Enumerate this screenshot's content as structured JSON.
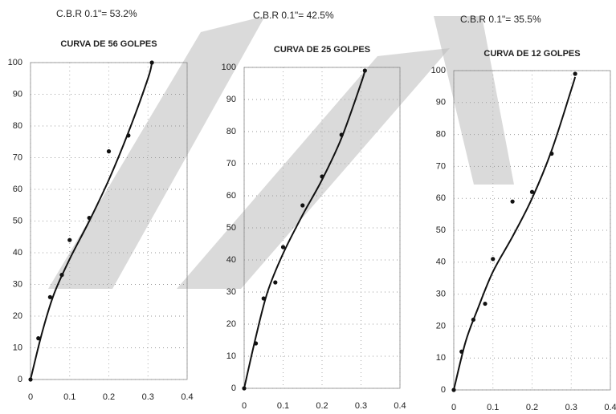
{
  "chart_data": [
    {
      "type": "scatter",
      "annotation": "C.B.R 0.1\"= 53.2%",
      "title": "CURVA DE 56 GOLPES",
      "xlim": [
        0,
        0.4
      ],
      "xticks": [
        0,
        0.1,
        0.2,
        0.3,
        0.4
      ],
      "ylim": [
        0,
        100
      ],
      "yticks": [
        0,
        10,
        20,
        30,
        40,
        50,
        60,
        70,
        80,
        90,
        100
      ],
      "grid": true,
      "series": [
        {
          "mode": "markers",
          "color": "#111111",
          "x": [
            0,
            0.02,
            0.05,
            0.08,
            0.1,
            0.15,
            0.2,
            0.25,
            0.31
          ],
          "values": [
            0,
            13,
            26,
            33,
            44,
            51,
            72,
            77,
            100
          ]
        },
        {
          "mode": "line",
          "color": "#111111",
          "x": [
            0,
            0.03,
            0.06,
            0.1,
            0.15,
            0.2,
            0.25,
            0.3,
            0.31
          ],
          "values": [
            0,
            15,
            27,
            38,
            50,
            63,
            78,
            95,
            100
          ]
        }
      ]
    },
    {
      "type": "scatter",
      "annotation": "C.B.R 0.1\"= 42.5%",
      "title": "CURVA DE 25 GOLPES",
      "xlim": [
        0,
        0.4
      ],
      "xticks": [
        0,
        0.1,
        0.2,
        0.3,
        0.4
      ],
      "ylim": [
        0,
        100
      ],
      "yticks": [
        0,
        10,
        20,
        30,
        40,
        50,
        60,
        70,
        80,
        90,
        100
      ],
      "grid": true,
      "series": [
        {
          "mode": "markers",
          "color": "#111111",
          "x": [
            0,
            0.03,
            0.05,
            0.08,
            0.1,
            0.15,
            0.2,
            0.25,
            0.31
          ],
          "values": [
            0,
            14,
            28,
            33,
            44,
            57,
            66,
            79,
            99
          ]
        },
        {
          "mode": "line",
          "color": "#111111",
          "x": [
            0,
            0.03,
            0.06,
            0.1,
            0.15,
            0.2,
            0.25,
            0.3,
            0.31
          ],
          "values": [
            0,
            16,
            30,
            42,
            54,
            65,
            78,
            95,
            99
          ]
        }
      ]
    },
    {
      "type": "scatter",
      "annotation": "C.B.R 0.1\"= 35.5%",
      "title": "CURVA DE 12 GOLPES",
      "xlim": [
        0,
        0.4
      ],
      "xticks": [
        0,
        0.1,
        0.2,
        0.3,
        0.4
      ],
      "ylim": [
        0,
        100
      ],
      "yticks": [
        0,
        10,
        20,
        30,
        40,
        50,
        60,
        70,
        80,
        90,
        100
      ],
      "grid": true,
      "series": [
        {
          "mode": "markers",
          "color": "#111111",
          "x": [
            0,
            0.02,
            0.05,
            0.08,
            0.1,
            0.15,
            0.2,
            0.25,
            0.31
          ],
          "values": [
            0,
            12,
            22,
            27,
            41,
            59,
            62,
            74,
            99
          ]
        },
        {
          "mode": "line",
          "color": "#111111",
          "x": [
            0,
            0.03,
            0.06,
            0.1,
            0.15,
            0.2,
            0.25,
            0.3,
            0.31
          ],
          "values": [
            0,
            15,
            25,
            37,
            48,
            60,
            75,
            94,
            98
          ]
        }
      ]
    }
  ]
}
